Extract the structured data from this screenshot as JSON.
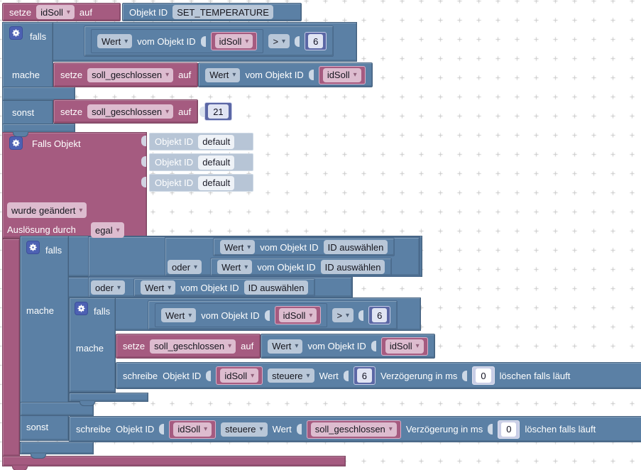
{
  "colors": {
    "block_blue": "#5b80a5",
    "block_maroon": "#a55b80",
    "block_indigo": "#5b67a5",
    "ghost_block": "#b7c5d6",
    "canvas": "#ffffff",
    "grid_cross": "#c9c9c9"
  },
  "top_set": {
    "keyword": "setze",
    "variable": "idSoll",
    "connector": "auf",
    "oid": {
      "label": "Objekt ID",
      "value": "SET_TEMPERATURE"
    }
  },
  "if1": {
    "if_label": "falls",
    "then_label": "mache",
    "else_label": "sonst",
    "condition": {
      "value_dd": "Wert",
      "of_label": "vom Objekt ID",
      "variable": "idSoll",
      "operator": ">",
      "number": "6"
    },
    "then_set": {
      "keyword": "setze",
      "variable": "soll_geschlossen",
      "connector": "auf",
      "value": {
        "value_dd": "Wert",
        "of_label": "vom Objekt ID",
        "variable": "idSoll"
      }
    },
    "else_set": {
      "keyword": "setze",
      "variable": "soll_geschlossen",
      "connector": "auf",
      "number": "21"
    }
  },
  "trigger": {
    "title": "Falls Objekt",
    "oids": [
      {
        "label": "Objekt ID",
        "value": "default"
      },
      {
        "label": "Objekt ID",
        "value": "default"
      },
      {
        "label": "Objekt ID",
        "value": "default"
      }
    ],
    "event_dd": "wurde geändert",
    "condition_label": "Auslösung durch",
    "condition_dd": "egal",
    "if2": {
      "if_label": "falls",
      "then_label": "mache",
      "else_label": "sonst",
      "conditions": [
        {
          "value_dd": "Wert",
          "of_label": "vom Objekt ID",
          "oid": "ID auswählen"
        },
        {
          "op_dd": "oder",
          "value_dd": "Wert",
          "of_label": "vom Objekt ID",
          "oid": "ID auswählen"
        },
        {
          "op_dd": "oder",
          "value_dd": "Wert",
          "of_label": "vom Objekt ID",
          "oid": "ID auswählen"
        }
      ],
      "if3": {
        "if_label": "falls",
        "then_label": "mache",
        "condition": {
          "value_dd": "Wert",
          "of_label": "vom Objekt ID",
          "variable": "idSoll",
          "operator": ">",
          "number": "6"
        },
        "then_set": {
          "keyword": "setze",
          "variable": "soll_geschlossen",
          "connector": "auf",
          "value": {
            "value_dd": "Wert",
            "of_label": "vom Objekt ID",
            "variable": "idSoll"
          }
        },
        "write": {
          "keyword": "schreibe",
          "oid_label": "Objekt ID",
          "oid_variable": "idSoll",
          "mode_dd": "steuere",
          "value_label": "Wert",
          "number": "6",
          "delay_label": "Verzögerung in ms",
          "delay_value": "0",
          "clear_label": "löschen falls läuft"
        }
      },
      "else_write": {
        "keyword": "schreibe",
        "oid_label": "Objekt ID",
        "oid_variable": "idSoll",
        "mode_dd": "steuere",
        "value_label": "Wert",
        "value_variable": "soll_geschlossen",
        "delay_label": "Verzögerung in ms",
        "delay_value": "0",
        "clear_label": "löschen falls läuft"
      }
    }
  }
}
